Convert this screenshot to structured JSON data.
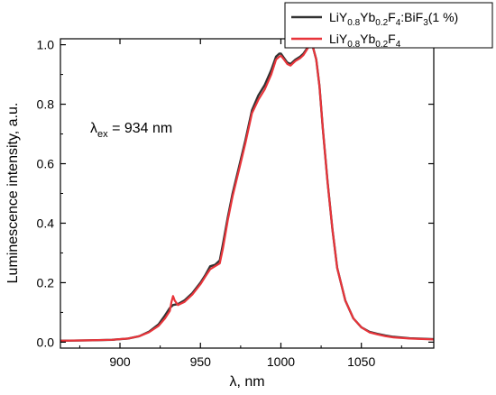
{
  "chart_data": {
    "type": "line",
    "title": "",
    "xlabel": "λ, nm",
    "ylabel": "Luminescence intensity, a.u.",
    "xlim": [
      863,
      1095
    ],
    "ylim": [
      -0.02,
      1.02
    ],
    "xticks": [
      900,
      950,
      1000,
      1050
    ],
    "yticks": [
      0.0,
      0.2,
      0.4,
      0.6,
      0.8,
      1.0
    ],
    "xtick_labels": [
      "900",
      "950",
      "1000",
      "1050"
    ],
    "ytick_labels": [
      "0.0",
      "0.2",
      "0.4",
      "0.6",
      "0.8",
      "1.0"
    ],
    "grid": false,
    "legend_position": "top-right",
    "annotation": {
      "base": "λ",
      "sub": "ex",
      "text": " = 934 nm"
    },
    "series": [
      {
        "name": "LiY0.8Yb0.2F4:BiF3(1 %)",
        "name_parts": [
          {
            "t": "LiY",
            "sub": false
          },
          {
            "t": "0.8",
            "sub": true
          },
          {
            "t": "Yb",
            "sub": false
          },
          {
            "t": "0.2",
            "sub": true
          },
          {
            "t": "F",
            "sub": false
          },
          {
            "t": "4",
            "sub": true
          },
          {
            "t": ":BiF",
            "sub": false
          },
          {
            "t": "3",
            "sub": true
          },
          {
            "t": "(1 %)",
            "sub": false
          }
        ],
        "color": "#333333",
        "x": [
          863,
          880,
          895,
          905,
          912,
          918,
          924,
          928,
          931,
          933,
          936,
          940,
          945,
          950,
          953,
          956,
          959,
          962,
          964,
          967,
          970,
          974,
          978,
          982,
          986,
          990,
          994,
          997,
          999,
          1000,
          1002,
          1004,
          1006,
          1009,
          1012,
          1014,
          1016,
          1018,
          1020,
          1022,
          1024,
          1026,
          1029,
          1032,
          1035,
          1040,
          1045,
          1050,
          1055,
          1060,
          1065,
          1070,
          1080,
          1095
        ],
        "y": [
          0.005,
          0.006,
          0.008,
          0.012,
          0.02,
          0.035,
          0.06,
          0.09,
          0.115,
          0.125,
          0.128,
          0.14,
          0.165,
          0.2,
          0.225,
          0.255,
          0.26,
          0.275,
          0.33,
          0.42,
          0.5,
          0.59,
          0.68,
          0.78,
          0.83,
          0.865,
          0.915,
          0.96,
          0.97,
          0.97,
          0.955,
          0.94,
          0.935,
          0.95,
          0.96,
          0.97,
          0.985,
          1.0,
          0.99,
          0.95,
          0.86,
          0.72,
          0.54,
          0.38,
          0.25,
          0.14,
          0.08,
          0.05,
          0.035,
          0.028,
          0.022,
          0.018,
          0.013,
          0.01
        ]
      },
      {
        "name": "LiY0.8Yb0.2F4",
        "name_parts": [
          {
            "t": "LiY",
            "sub": false
          },
          {
            "t": "0.8",
            "sub": true
          },
          {
            "t": "Yb",
            "sub": false
          },
          {
            "t": "0.2",
            "sub": true
          },
          {
            "t": "F",
            "sub": false
          },
          {
            "t": "4",
            "sub": true
          }
        ],
        "color": "#e8343a",
        "x": [
          863,
          880,
          895,
          905,
          912,
          918,
          924,
          928,
          931,
          932,
          933,
          934,
          936,
          940,
          945,
          950,
          953,
          956,
          959,
          962,
          964,
          967,
          970,
          974,
          978,
          982,
          986,
          990,
          994,
          997,
          999,
          1000,
          1002,
          1004,
          1006,
          1009,
          1012,
          1014,
          1016,
          1018,
          1020,
          1022,
          1024,
          1026,
          1029,
          1032,
          1035,
          1040,
          1045,
          1050,
          1055,
          1060,
          1065,
          1070,
          1080,
          1095
        ],
        "y": [
          0.005,
          0.006,
          0.008,
          0.012,
          0.02,
          0.033,
          0.055,
          0.08,
          0.105,
          0.135,
          0.155,
          0.14,
          0.125,
          0.135,
          0.16,
          0.195,
          0.22,
          0.245,
          0.255,
          0.265,
          0.315,
          0.41,
          0.49,
          0.58,
          0.67,
          0.77,
          0.815,
          0.85,
          0.9,
          0.95,
          0.96,
          0.963,
          0.95,
          0.935,
          0.93,
          0.945,
          0.955,
          0.965,
          0.982,
          1.0,
          0.99,
          0.95,
          0.86,
          0.72,
          0.54,
          0.38,
          0.25,
          0.14,
          0.08,
          0.05,
          0.033,
          0.026,
          0.02,
          0.016,
          0.012,
          0.009
        ]
      }
    ]
  }
}
